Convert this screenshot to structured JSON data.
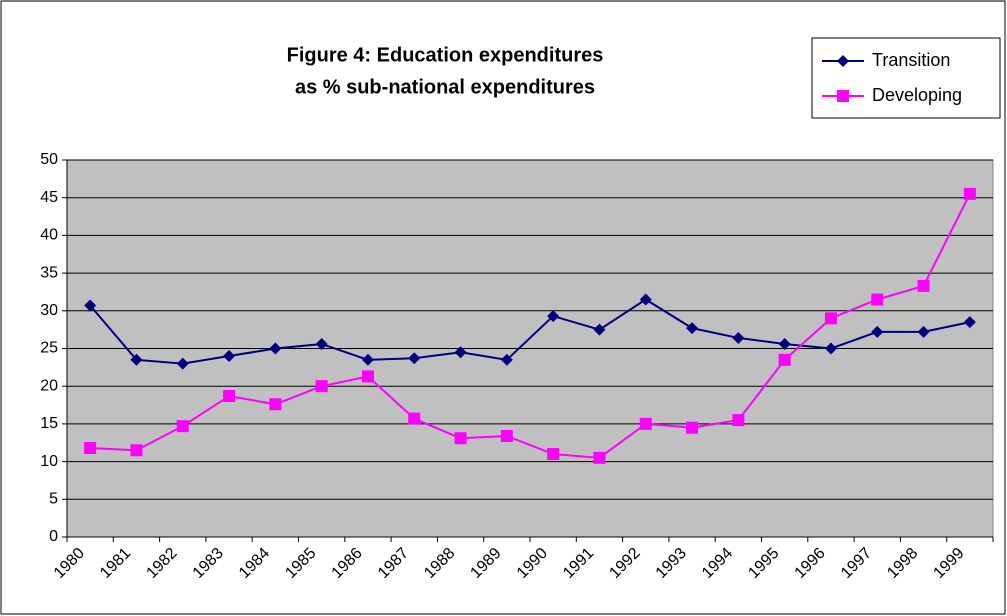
{
  "chart_data": {
    "type": "line",
    "title": [
      "Figure 4: Education expenditures",
      "as % sub-national expenditures"
    ],
    "categories": [
      "1980",
      "1981",
      "1982",
      "1983",
      "1984",
      "1985",
      "1986",
      "1987",
      "1988",
      "1989",
      "1990",
      "1991",
      "1992",
      "1993",
      "1994",
      "1995",
      "1996",
      "1997",
      "1998",
      "1999"
    ],
    "series": [
      {
        "name": "Transition",
        "color": "#000080",
        "marker": "diamond",
        "values": [
          30.7,
          23.5,
          23,
          24,
          25,
          25.6,
          23.5,
          23.7,
          24.5,
          23.5,
          29.3,
          27.5,
          31.5,
          27.7,
          26.4,
          25.6,
          25,
          27.2,
          27.2,
          28.5
        ]
      },
      {
        "name": "Developing",
        "color": "#ff00ff",
        "marker": "square",
        "values": [
          11.8,
          11.5,
          14.7,
          18.7,
          17.6,
          20,
          21.3,
          15.7,
          13.1,
          13.4,
          11,
          10.5,
          15,
          14.5,
          15.5,
          23.5,
          29,
          31.5,
          33.3,
          45.5
        ]
      }
    ],
    "ylim": [
      0,
      50
    ],
    "yticks": [
      0,
      5,
      10,
      15,
      20,
      25,
      30,
      35,
      40,
      45,
      50
    ],
    "grid": true,
    "plot_background": "#c0c0c0",
    "legend": "top-right"
  }
}
